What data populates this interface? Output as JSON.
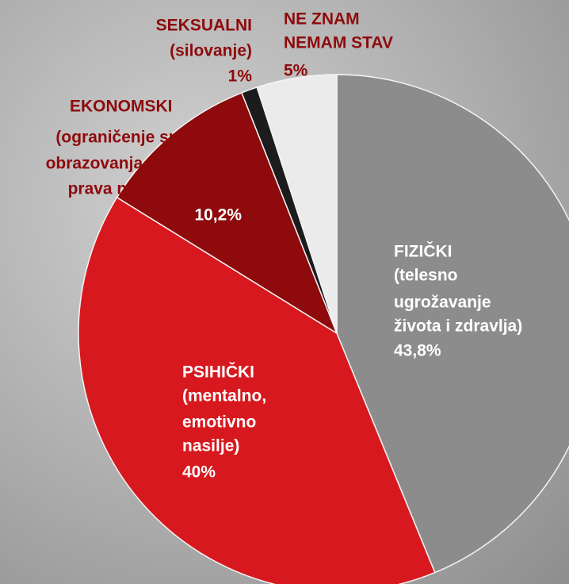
{
  "chart_data": {
    "type": "pie",
    "categories": [
      "FIZIČKI",
      "PSIHIČKI",
      "EKONOMSKI",
      "SEKSUALNI",
      "NE ZNAM"
    ],
    "descriptions": [
      [
        "(telesno",
        "ugrožavanje",
        "života i zdravlja)"
      ],
      [
        "(mentalno,",
        "emotivno",
        "nasilje)"
      ],
      [
        "(ograničenje sredstava,",
        "obrazovanja, zaposlenja,",
        "prava na vlasništvo...)"
      ],
      [
        "(silovanje)"
      ],
      [
        "NEMAM STAV"
      ]
    ],
    "values": [
      43.8,
      40,
      10.2,
      1,
      5
    ],
    "value_labels": [
      "43,8%",
      "40%",
      "10,2%",
      "1%",
      "5%"
    ],
    "colors": [
      "#8c8c8c",
      "#d7191f",
      "#8e0a0c",
      "#1c1c1c",
      "#ebebeb"
    ]
  }
}
